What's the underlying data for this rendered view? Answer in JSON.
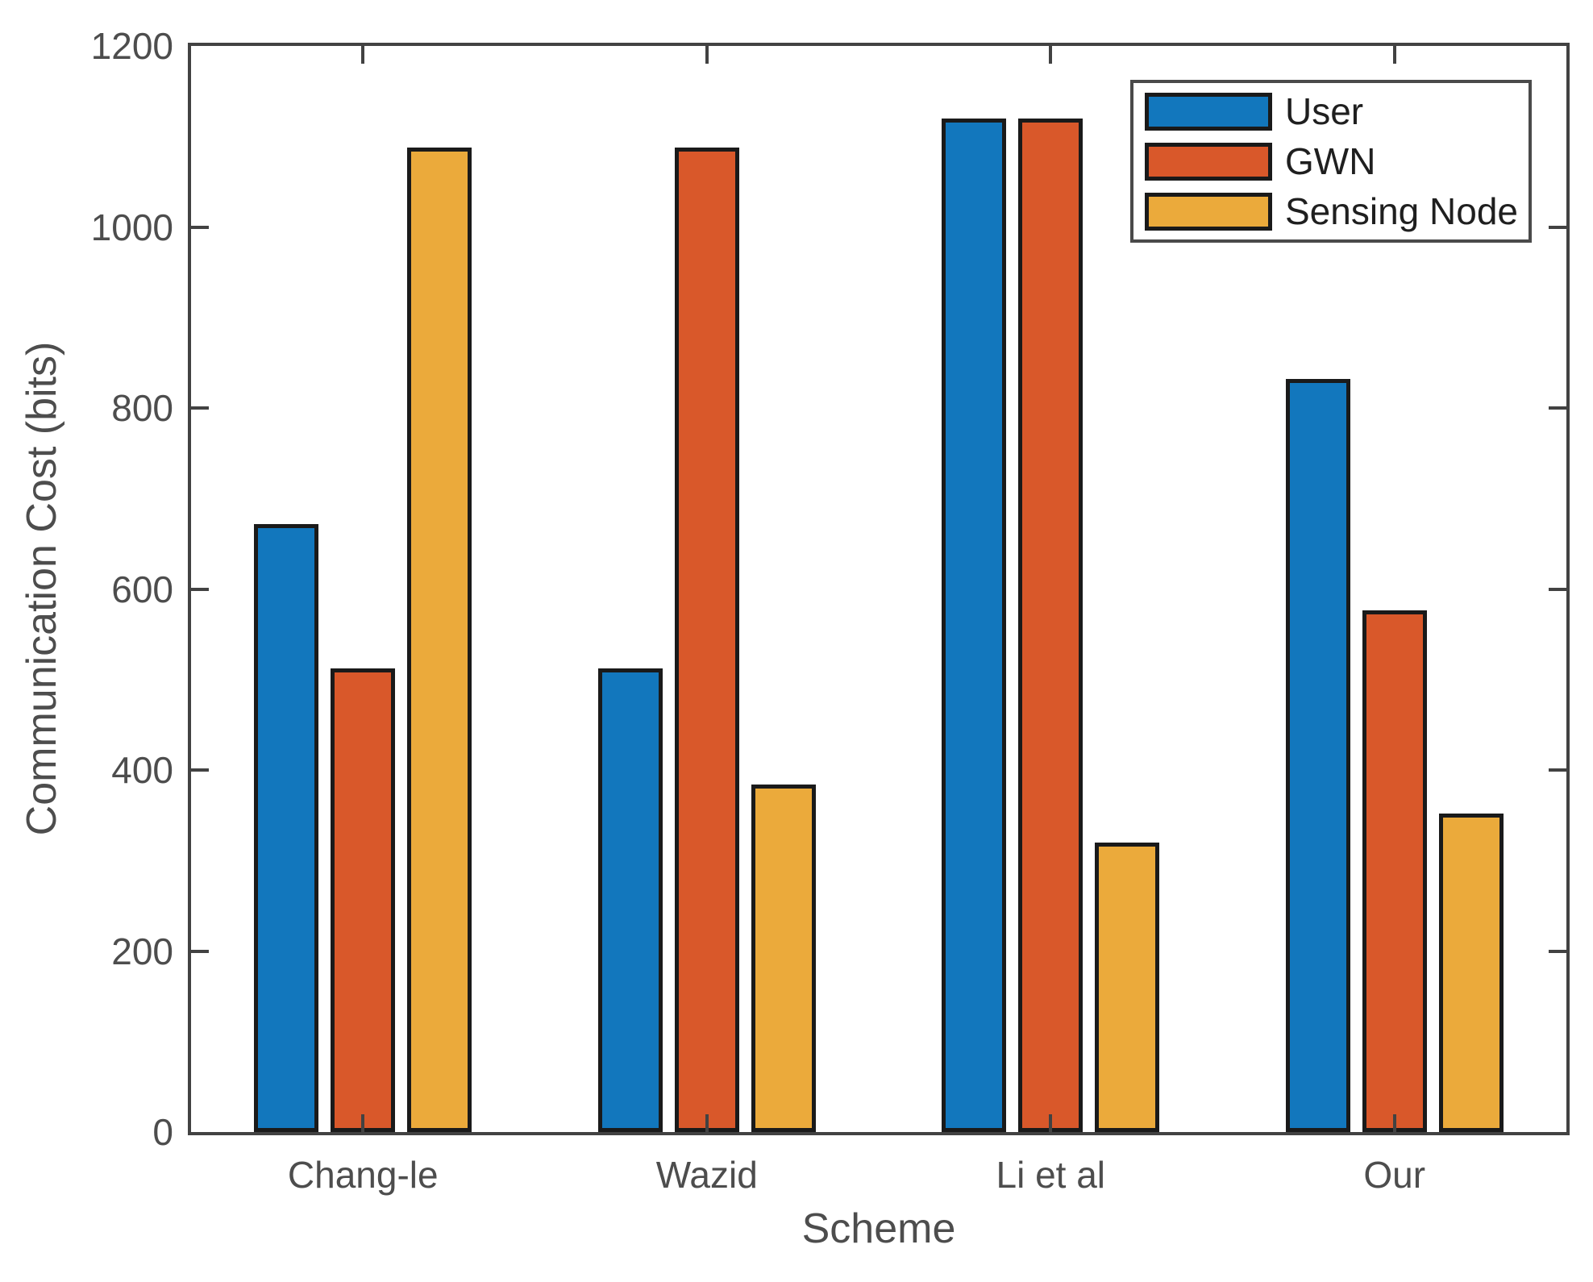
{
  "figure": {
    "xlabel": "Scheme",
    "ylabel": "Communication Cost (bits)",
    "background": "#ffffff",
    "axis_color": "#424242",
    "tick_text_color": "#4d4d4d",
    "legend_text_color": "#1f1f1f",
    "bar_outline_color": "#1a1a1a"
  },
  "chart_data": {
    "type": "bar",
    "title": "",
    "xlabel": "Scheme",
    "ylabel": "Communication Cost (bits)",
    "categories": [
      "Chang-le",
      "Wazid",
      "Li et al",
      "Our"
    ],
    "series": [
      {
        "name": "User",
        "color": "#1277BD",
        "values": [
          672,
          512,
          1120,
          832
        ]
      },
      {
        "name": "GWN",
        "color": "#D9582A",
        "values": [
          512,
          1088,
          1120,
          576
        ]
      },
      {
        "name": "Sensing Node",
        "color": "#EBAA3B",
        "values": [
          1088,
          384,
          320,
          352
        ]
      }
    ],
    "ylim": [
      0,
      1200
    ],
    "yticks": [
      0,
      200,
      400,
      600,
      800,
      1000,
      1200
    ],
    "grid": false,
    "legend_position": "upper-right",
    "tick_direction": "in"
  }
}
